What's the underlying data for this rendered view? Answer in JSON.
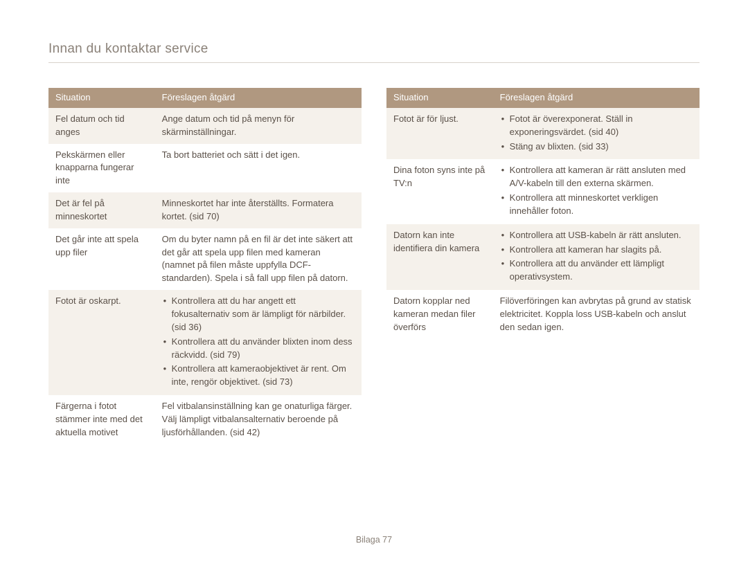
{
  "page": {
    "title": "Innan du kontaktar service",
    "footer_label": "Bilaga",
    "footer_page": "77"
  },
  "tables": {
    "headers": {
      "situation": "Situation",
      "action": "Föreslagen åtgärd"
    },
    "left": [
      {
        "situation": "Fel datum och tid anges",
        "action_type": "text",
        "action": "Ange datum och tid på menyn för skärminställningar."
      },
      {
        "situation": "Pekskärmen eller knapparna fungerar inte",
        "action_type": "text",
        "action": "Ta bort batteriet och sätt i det igen."
      },
      {
        "situation": "Det är fel på minneskortet",
        "action_type": "text",
        "action": "Minneskortet har inte återställts. Formatera kortet. (sid 70)"
      },
      {
        "situation": "Det går inte att spela upp filer",
        "action_type": "text",
        "action": "Om du byter namn på en fil är det inte säkert att det går att spela upp filen med kameran (namnet på filen måste uppfylla DCF-standarden). Spela i så fall upp filen på datorn."
      },
      {
        "situation": "Fotot är oskarpt.",
        "action_type": "bullets",
        "bullets": [
          "Kontrollera att du har angett ett fokusalternativ som är lämpligt för närbilder. (sid 36)",
          "Kontrollera att du använder blixten inom dess räckvidd. (sid 79)",
          "Kontrollera att kameraobjektivet är rent. Om inte, rengör objektivet. (sid 73)"
        ]
      },
      {
        "situation": "Färgerna i fotot stämmer inte med det aktuella motivet",
        "action_type": "text",
        "action": "Fel vitbalansinställning kan ge onaturliga färger. Välj lämpligt vitbalansalternativ beroende på ljusförhållanden. (sid 42)"
      }
    ],
    "right": [
      {
        "situation": "Fotot är för ljust.",
        "action_type": "bullets",
        "bullets": [
          "Fotot är överexponerat. Ställ in exponeringsvärdet. (sid 40)",
          "Stäng av blixten. (sid 33)"
        ]
      },
      {
        "situation": "Dina foton syns inte på TV:n",
        "action_type": "bullets",
        "bullets": [
          "Kontrollera att kameran är rätt ansluten med A/V-kabeln till den externa skärmen.",
          "Kontrollera att minneskortet verkligen innehåller foton."
        ]
      },
      {
        "situation": "Datorn kan inte identifiera din kamera",
        "action_type": "bullets",
        "bullets": [
          "Kontrollera att USB-kabeln är rätt ansluten.",
          "Kontrollera att kameran har slagits på.",
          "Kontrollera att du använder ett lämpligt operativsystem."
        ]
      },
      {
        "situation": "Datorn kopplar ned kameran medan filer överförs",
        "action_type": "text",
        "action": "Filöverföringen kan avbrytas på grund av statisk elektricitet. Koppla loss USB-kabeln och anslut den sedan igen."
      }
    ]
  }
}
